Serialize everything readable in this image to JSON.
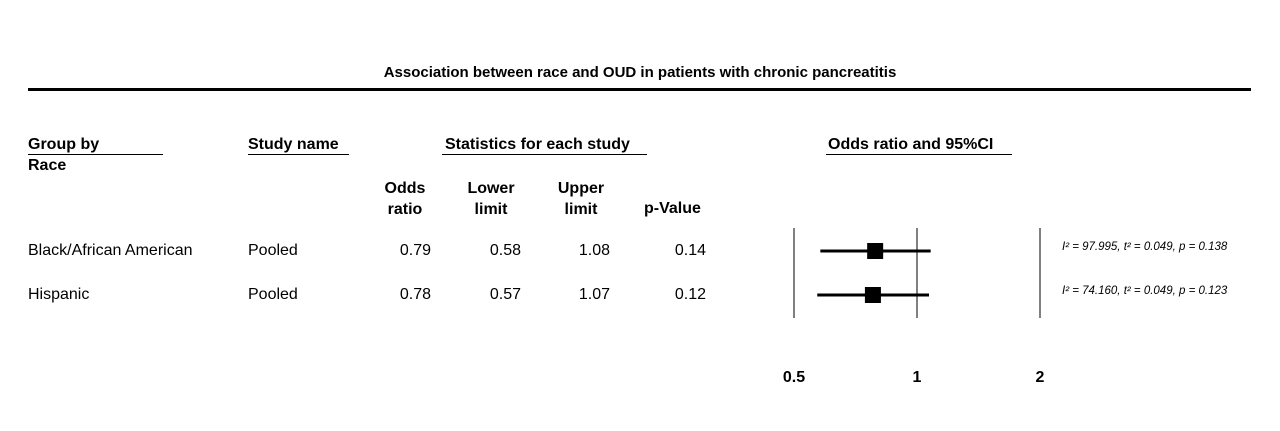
{
  "title": "Association between race and OUD in patients with chronic pancreatitis",
  "headers": {
    "group_line1": "Group by",
    "group_line2": "Race",
    "study": "Study name",
    "stats": "Statistics for each study",
    "plot": "Odds ratio and 95%CI"
  },
  "columns": {
    "or_line1": "Odds",
    "or_line2": "ratio",
    "lower_line1": "Lower",
    "lower_line2": "limit",
    "upper_line1": "Upper",
    "upper_line2": "limit",
    "p": "p-Value"
  },
  "rows": [
    {
      "group": "Black/African American",
      "study": "Pooled",
      "or": "0.79",
      "lower": "0.58",
      "upper": "1.08",
      "p": "0.14",
      "stat": "I² = 97.995, t² = 0.049, p = 0.138"
    },
    {
      "group": "Hispanic",
      "study": "Pooled",
      "or": "0.78",
      "lower": "0.57",
      "upper": "1.07",
      "p": "0.12",
      "stat": "I² = 74.160, t² = 0.049, p = 0.123"
    }
  ],
  "axis_ticks": [
    "0.5",
    "1",
    "2"
  ],
  "chart_data": {
    "type": "forest",
    "title": "Association between race and OUD in patients with chronic pancreatitis",
    "x_scale": "log",
    "xlim": [
      0.5,
      2
    ],
    "ticks": [
      0.5,
      1,
      2
    ],
    "reference_line": 1,
    "series": [
      {
        "name": "Black/African American",
        "odds_ratio": 0.79,
        "lower": 0.58,
        "upper": 1.08,
        "p": 0.14
      },
      {
        "name": "Hispanic",
        "odds_ratio": 0.78,
        "lower": 0.57,
        "upper": 1.07,
        "p": 0.12
      }
    ]
  }
}
